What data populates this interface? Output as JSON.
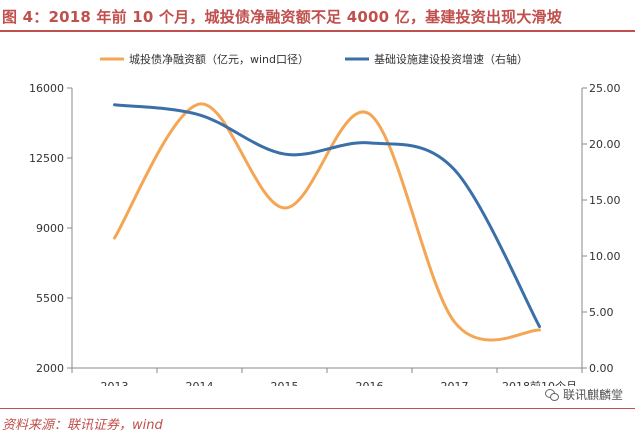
{
  "title": "图 4：2018 年前 10 个月，城投债净融资额不足 4000 亿，基建投资出现大滑坡",
  "source": "资料来源：联讯证券，wind",
  "watermark": "联讯麒麟堂",
  "colors": {
    "accent": "#c0504d",
    "series_orange": "#f4a654",
    "series_blue": "#3b6fa8",
    "axis": "#888888",
    "text": "#333333"
  },
  "chart_data": {
    "type": "line",
    "categories": [
      "2013",
      "2014",
      "2015",
      "2016",
      "2017",
      "2018前10个月"
    ],
    "series": [
      {
        "name": "城投债净融资额（亿元，wind口径）",
        "axis": "left",
        "color": "#f4a654",
        "values": [
          8500,
          15200,
          10000,
          14700,
          4300,
          3900
        ]
      },
      {
        "name": "基础设施建设投资增速（右轴）",
        "axis": "right",
        "color": "#3b6fa8",
        "values": [
          23.5,
          22.6,
          19.1,
          20.1,
          17.7,
          3.7
        ]
      }
    ],
    "y_left": {
      "min": 2000,
      "max": 16000,
      "ticks": [
        "2000",
        "5500",
        "9000",
        "12500",
        "16000"
      ]
    },
    "y_right": {
      "min": 0,
      "max": 25,
      "ticks": [
        "0.00",
        "5.00",
        "10.00",
        "15.00",
        "20.00",
        "25.00"
      ]
    },
    "legend_position": "top"
  }
}
